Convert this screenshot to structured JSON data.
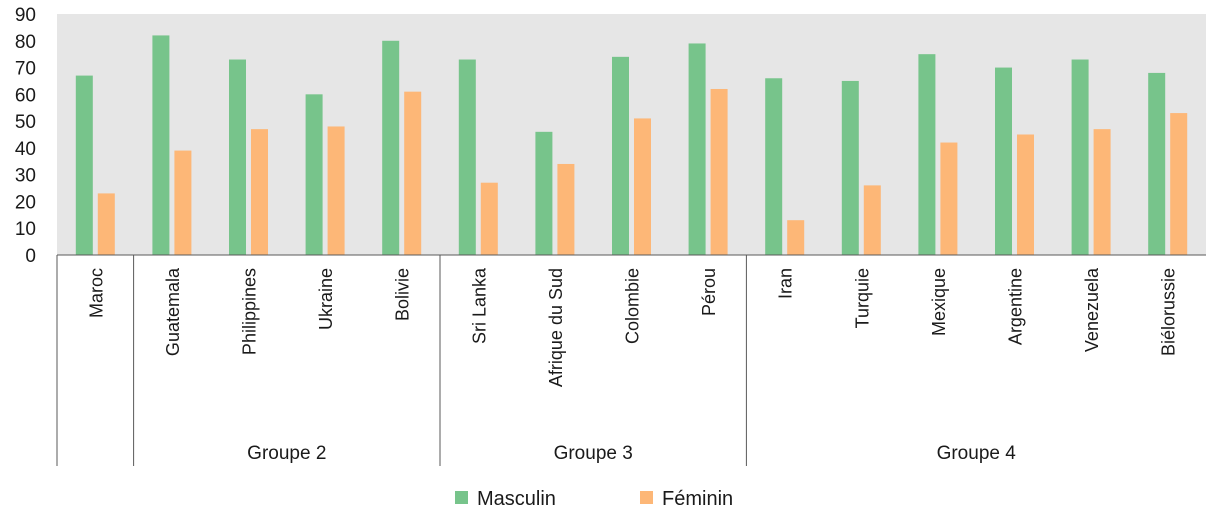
{
  "chart_data": {
    "type": "bar",
    "ylim": [
      0,
      90
    ],
    "yticks": [
      0,
      10,
      20,
      30,
      40,
      50,
      60,
      70,
      80,
      90
    ],
    "categories": [
      "Maroc",
      "Guatemala",
      "Philippines",
      "Ukraine",
      "Bolivie",
      "Sri Lanka",
      "Afrique du Sud",
      "Colombie",
      "Pérou",
      "Iran",
      "Turquie",
      "Mexique",
      "Argentine",
      "Venezuela",
      "Biélorussie"
    ],
    "groups": [
      {
        "label": "",
        "count": 1
      },
      {
        "label": "Groupe 2",
        "count": 4
      },
      {
        "label": "Groupe 3",
        "count": 4
      },
      {
        "label": "Groupe 4",
        "count": 6
      }
    ],
    "series": [
      {
        "name": "Masculin",
        "color": "#77c48b",
        "values": [
          67,
          82,
          73,
          60,
          80,
          73,
          46,
          74,
          79,
          66,
          65,
          75,
          70,
          73,
          68
        ]
      },
      {
        "name": "Féminin",
        "color": "#fdb777",
        "values": [
          23,
          39,
          47,
          48,
          61,
          27,
          34,
          51,
          62,
          13,
          26,
          42,
          45,
          47,
          53
        ]
      }
    ],
    "grid": false,
    "legend": "bottom-center",
    "plot_background": "#e6e6e6"
  }
}
